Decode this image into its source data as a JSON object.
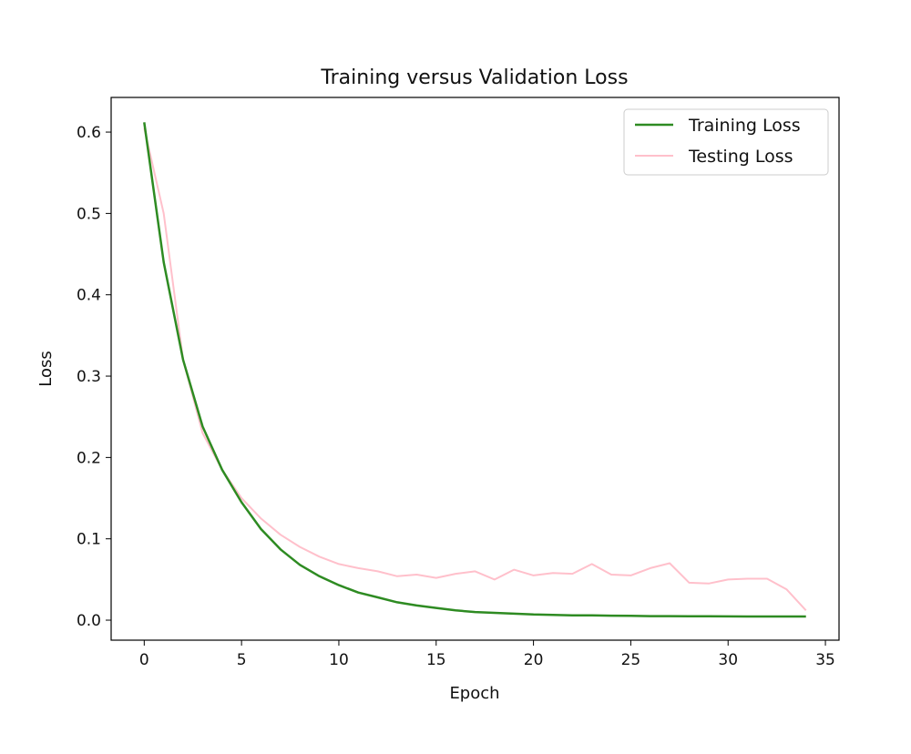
{
  "chart_data": {
    "type": "line",
    "title": "Training versus Validation Loss",
    "xlabel": "Epoch",
    "ylabel": "Loss",
    "xlim": [
      -1.7,
      35.7
    ],
    "ylim": [
      -0.0246,
      0.6426
    ],
    "xticks": [
      0,
      5,
      10,
      15,
      20,
      25,
      30,
      35
    ],
    "yticks": [
      0.0,
      0.1,
      0.2,
      0.3,
      0.4,
      0.5,
      0.6
    ],
    "ytick_labels": [
      "0.0",
      "0.1",
      "0.2",
      "0.3",
      "0.4",
      "0.5",
      "0.6"
    ],
    "grid": false,
    "legend_position": "top-right",
    "x": [
      0,
      1,
      2,
      3,
      4,
      5,
      6,
      7,
      8,
      9,
      10,
      11,
      12,
      13,
      14,
      15,
      16,
      17,
      18,
      19,
      20,
      21,
      22,
      23,
      24,
      25,
      26,
      27,
      28,
      29,
      30,
      31,
      32,
      33,
      34
    ],
    "series": [
      {
        "name": "Training Loss",
        "color": "#2e8b22",
        "values": [
          0.612,
          0.44,
          0.32,
          0.238,
          0.185,
          0.145,
          0.112,
          0.087,
          0.068,
          0.054,
          0.043,
          0.034,
          0.028,
          0.022,
          0.018,
          0.015,
          0.012,
          0.01,
          0.009,
          0.008,
          0.007,
          0.0065,
          0.006,
          0.0058,
          0.0055,
          0.0053,
          0.005,
          0.005,
          0.0048,
          0.0047,
          0.0046,
          0.0045,
          0.0045,
          0.0045,
          0.0045
        ]
      },
      {
        "name": "Testing Loss",
        "color": "#ffc0cb",
        "values": [
          0.605,
          0.5,
          0.32,
          0.23,
          0.185,
          0.15,
          0.125,
          0.105,
          0.09,
          0.078,
          0.069,
          0.064,
          0.06,
          0.054,
          0.056,
          0.052,
          0.057,
          0.06,
          0.05,
          0.062,
          0.055,
          0.058,
          0.057,
          0.069,
          0.056,
          0.055,
          0.064,
          0.07,
          0.046,
          0.045,
          0.05,
          0.051,
          0.051,
          0.038,
          0.012
        ]
      }
    ]
  }
}
